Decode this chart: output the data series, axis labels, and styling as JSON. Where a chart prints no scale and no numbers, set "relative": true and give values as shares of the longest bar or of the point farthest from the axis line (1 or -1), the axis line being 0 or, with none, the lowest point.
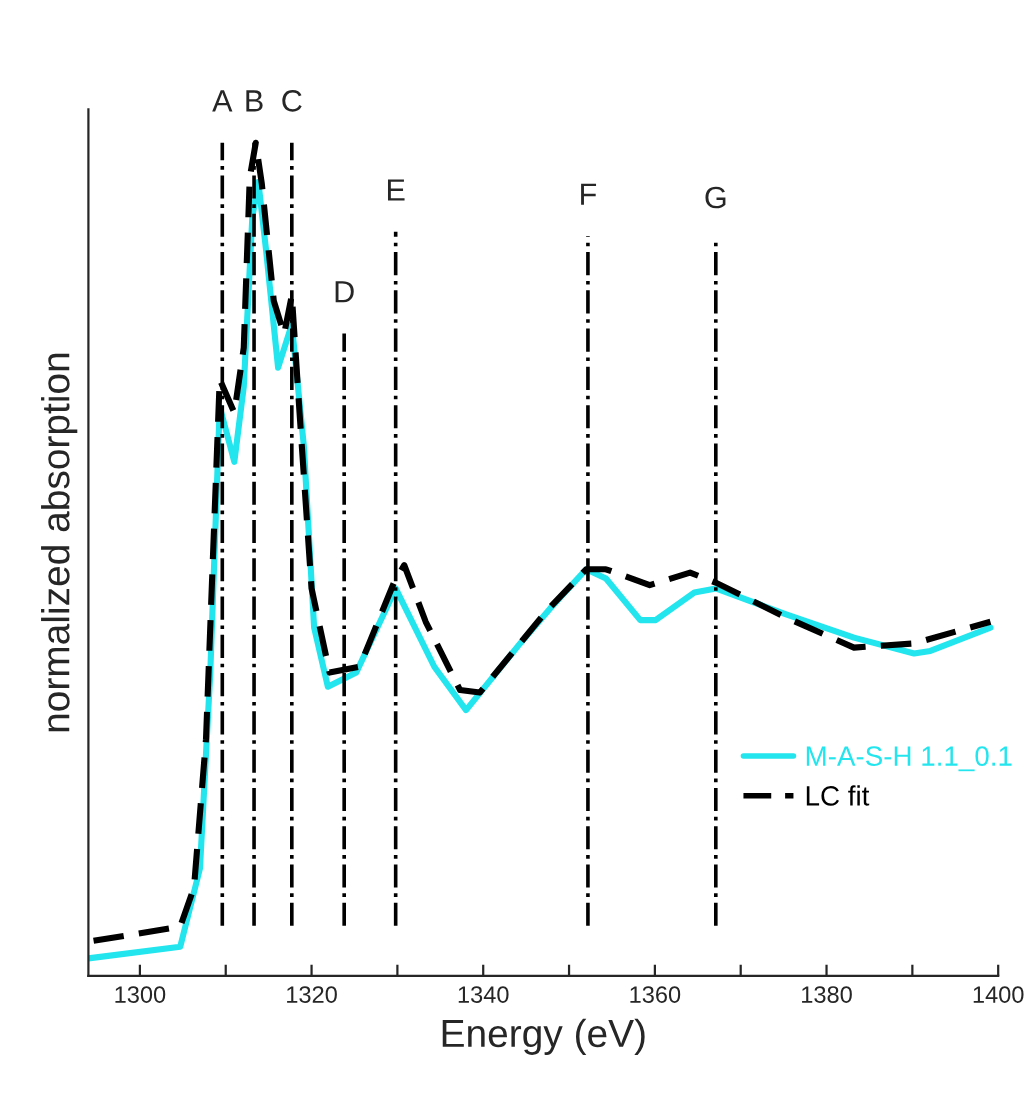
{
  "chart_data": {
    "type": "line",
    "xlabel": "Energy (eV)",
    "ylabel": "normalized absorption",
    "relative": true,
    "xlim": [
      1294,
      1400
    ],
    "xticks": [
      1300,
      {
        "value": 1310,
        "label": null
      },
      1320,
      {
        "value": 1330,
        "label": null
      },
      1340,
      {
        "value": 1350,
        "label": null
      },
      1360,
      {
        "value": 1370,
        "label": null
      },
      1380,
      {
        "value": 1390,
        "label": null
      },
      1400
    ],
    "legend": "right",
    "grid": false,
    "series": [
      {
        "name": "M-A-S-H 1.1_0.1",
        "color": "#22e5ee",
        "line_style": "solid",
        "x": [
          1294,
          1304.7,
          1307.0,
          1308.2,
          1309.3,
          1311.0,
          1312.1,
          1313.1,
          1313.8,
          1314.7,
          1316.1,
          1317.7,
          1319.1,
          1320.3,
          1321.9,
          1325.2,
          1329.8,
          1334.3,
          1338.0,
          1344.3,
          1347.8,
          1352.0,
          1354.3,
          1358.3,
          1360.1,
          1364.6,
          1367.1,
          1375.3,
          1383.2,
          1390.2,
          1392.1,
          1399.1
        ],
        "values": [
          0.021,
          0.035,
          0.129,
          0.364,
          0.683,
          0.617,
          0.707,
          0.911,
          0.953,
          0.871,
          0.73,
          0.782,
          0.636,
          0.418,
          0.347,
          0.364,
          0.465,
          0.371,
          0.319,
          0.399,
          0.441,
          0.488,
          0.477,
          0.427,
          0.427,
          0.46,
          0.465,
          0.434,
          0.406,
          0.387,
          0.39,
          0.418
        ]
      },
      {
        "name": "LC fit",
        "color": "#000000",
        "line_style": "dashed",
        "x": [
          1294.6,
          1304.7,
          1306.3,
          1307.7,
          1309.3,
          1311.0,
          1312.1,
          1312.8,
          1313.5,
          1314.2,
          1315.6,
          1316.8,
          1317.7,
          1318.6,
          1320.0,
          1322.1,
          1325.6,
          1329.6,
          1330.8,
          1333.3,
          1337.3,
          1339.6,
          1347.3,
          1352.0,
          1354.3,
          1359.4,
          1364.1,
          1367.1,
          1375.3,
          1383.2,
          1390.2,
          1399.1
        ],
        "values": [
          0.042,
          0.059,
          0.106,
          0.284,
          0.716,
          0.676,
          0.754,
          0.958,
          1.0,
          0.951,
          0.81,
          0.77,
          0.817,
          0.676,
          0.465,
          0.364,
          0.371,
          0.472,
          0.493,
          0.425,
          0.343,
          0.34,
          0.437,
          0.488,
          0.488,
          0.469,
          0.484,
          0.472,
          0.43,
          0.394,
          0.399,
          0.425
        ]
      }
    ],
    "ref_lines": [
      {
        "axis": "x",
        "value": 1309.6,
        "label": "A",
        "color": "#000000",
        "line_style": "dashdot"
      },
      {
        "axis": "x",
        "value": 1313.3,
        "label": "B",
        "color": "#000000",
        "line_style": "dashdot"
      },
      {
        "axis": "x",
        "value": 1317.7,
        "label": "C",
        "color": "#000000",
        "line_style": "dashdot"
      },
      {
        "axis": "x",
        "value": 1323.8,
        "label": "D",
        "color": "#000000",
        "line_style": "dashdot"
      },
      {
        "axis": "x",
        "value": 1329.8,
        "label": "E",
        "color": "#000000",
        "line_style": "dashdot"
      },
      {
        "axis": "x",
        "value": 1352.2,
        "label": "F",
        "color": "#000000",
        "line_style": "dashdot"
      },
      {
        "axis": "x",
        "value": 1367.1,
        "label": "G",
        "color": "#000000",
        "line_style": "dashdot"
      }
    ]
  }
}
